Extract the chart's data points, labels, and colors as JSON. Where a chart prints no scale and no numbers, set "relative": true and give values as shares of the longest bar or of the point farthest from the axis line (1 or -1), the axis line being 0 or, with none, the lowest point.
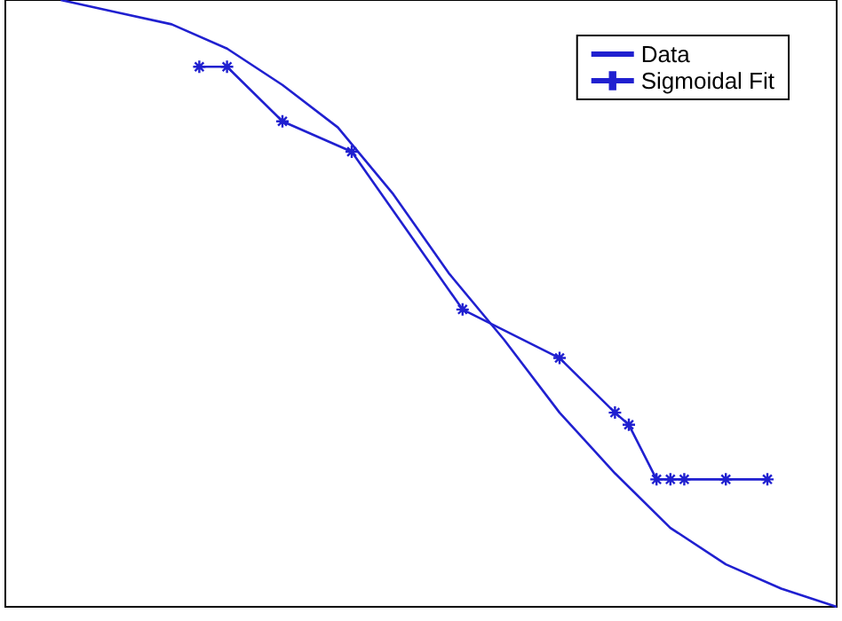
{
  "chart_data": {
    "type": "line",
    "relative": true,
    "legend": "top right",
    "marker": "cross",
    "categories": [
      null,
      null,
      null,
      null,
      null,
      null,
      null,
      null,
      null,
      null,
      null,
      null,
      null,
      null,
      null,
      null,
      null,
      null,
      null,
      null,
      null,
      null,
      null,
      null,
      null,
      null,
      null,
      null,
      null,
      null,
      null,
      null,
      null,
      null,
      null,
      null,
      null,
      null,
      null,
      null,
      null,
      null,
      null,
      null,
      null,
      null,
      null,
      null,
      null,
      null,
      null,
      null,
      null,
      null,
      null,
      null,
      null,
      null,
      null,
      null,
      null
    ],
    "series": [
      {
        "name": "Data",
        "color": "#2020d0",
        "marker": "none",
        "values": [
          null,
          null,
          null,
          null,
          1,
          null,
          null,
          null,
          0.98,
          null,
          null,
          null,
          0.96,
          null,
          null,
          null,
          0.92,
          null,
          null,
          null,
          0.86,
          null,
          null,
          null,
          0.79,
          null,
          null,
          null,
          0.68,
          null,
          null,
          null,
          0.55,
          null,
          null,
          null,
          0.44,
          null,
          null,
          null,
          0.32,
          null,
          null,
          null,
          0.22,
          null,
          null,
          null,
          0.13,
          null,
          null,
          null,
          0.07,
          null,
          null,
          null,
          0.03,
          null,
          null,
          null,
          0
        ]
      },
      {
        "name": "Sigmoidal Fit",
        "color": "#2020d0",
        "values": [
          null,
          null,
          null,
          null,
          null,
          null,
          null,
          null,
          null,
          null,
          null,
          null,
          null,
          null,
          0.89,
          null,
          0.89,
          null,
          null,
          null,
          0.8,
          null,
          null,
          null,
          null,
          0.75,
          null,
          null,
          null,
          null,
          null,
          null,
          null,
          0.49,
          null,
          null,
          null,
          null,
          null,
          null,
          0.41,
          null,
          null,
          null,
          0.32,
          0.3,
          null,
          0.21,
          0.21,
          0.21,
          null,
          null,
          0.21,
          null,
          null,
          0.21,
          null,
          null,
          null,
          null,
          null
        ]
      }
    ]
  }
}
